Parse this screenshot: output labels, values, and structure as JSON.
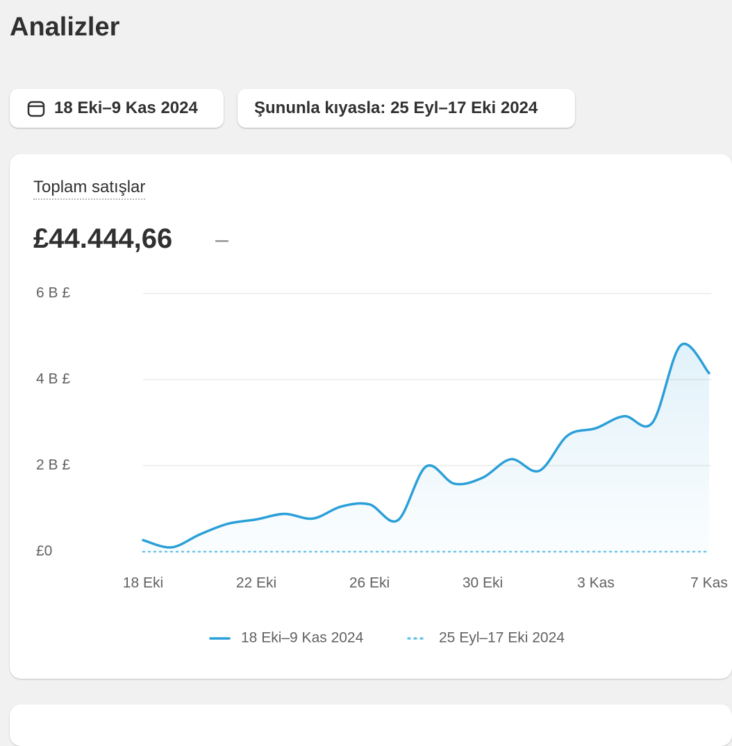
{
  "page_title": "Analizler",
  "filters": [
    "18 Eki–9 Kas 2024",
    "Şununla kıyasla: 25 Eyl–17 Eki 2024"
  ],
  "card": {
    "title": "Toplam satışlar",
    "value": "£44.444,66",
    "change": "–"
  },
  "chart_data": {
    "type": "line",
    "categories": [
      "18 Eki",
      null,
      null,
      null,
      "22 Eki",
      null,
      null,
      null,
      "26 Eki",
      null,
      null,
      null,
      "30 Eki",
      null,
      null,
      null,
      "3 Kas",
      null,
      null,
      null,
      "7 Kas"
    ],
    "series": [
      {
        "name": "18 Eki–9 Kas 2024",
        "color": "#2b9fd8",
        "values": [
          270,
          100,
          400,
          650,
          750,
          880,
          770,
          1050,
          1100,
          730,
          1980,
          1580,
          1720,
          2150,
          1880,
          2700,
          2870,
          3150,
          3000,
          4800,
          4150
        ]
      },
      {
        "name": "25 Eyl–17 Eki 2024",
        "color": "#6cc3ea",
        "dashed": true,
        "values": [
          0,
          0,
          0,
          0,
          0,
          0,
          0,
          0,
          0,
          0,
          0,
          0,
          0,
          0,
          0,
          0,
          0,
          0,
          0,
          0,
          0
        ]
      }
    ],
    "ylim": [
      0,
      6000
    ],
    "yticks": [
      {
        "value": 0,
        "label": "£0"
      },
      {
        "value": 2000,
        "label": "2 B £"
      },
      {
        "value": 4000,
        "label": "4 B £"
      },
      {
        "value": 6000,
        "label": "6 B £"
      }
    ],
    "grid": true
  }
}
